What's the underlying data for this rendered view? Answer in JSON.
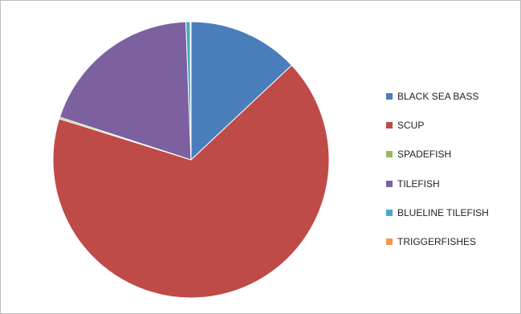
{
  "chart_data": {
    "type": "pie",
    "title": "",
    "categories": [
      "BLACK SEA BASS",
      "SCUP",
      "SPADEFISH",
      "TILEFISH",
      "BLUELINE TILEFISH",
      "TRIGGERFISHES"
    ],
    "values": [
      13.0,
      66.8,
      0.2,
      19.4,
      0.5,
      0.1
    ],
    "unit": "percent (estimated from slice angles)",
    "colors": [
      "#4a7ebb",
      "#be4b48",
      "#98b954",
      "#7d60a0",
      "#46aac4",
      "#f79646"
    ],
    "start_angle": "12 o'clock",
    "direction": "clockwise",
    "legend_position": "right"
  }
}
